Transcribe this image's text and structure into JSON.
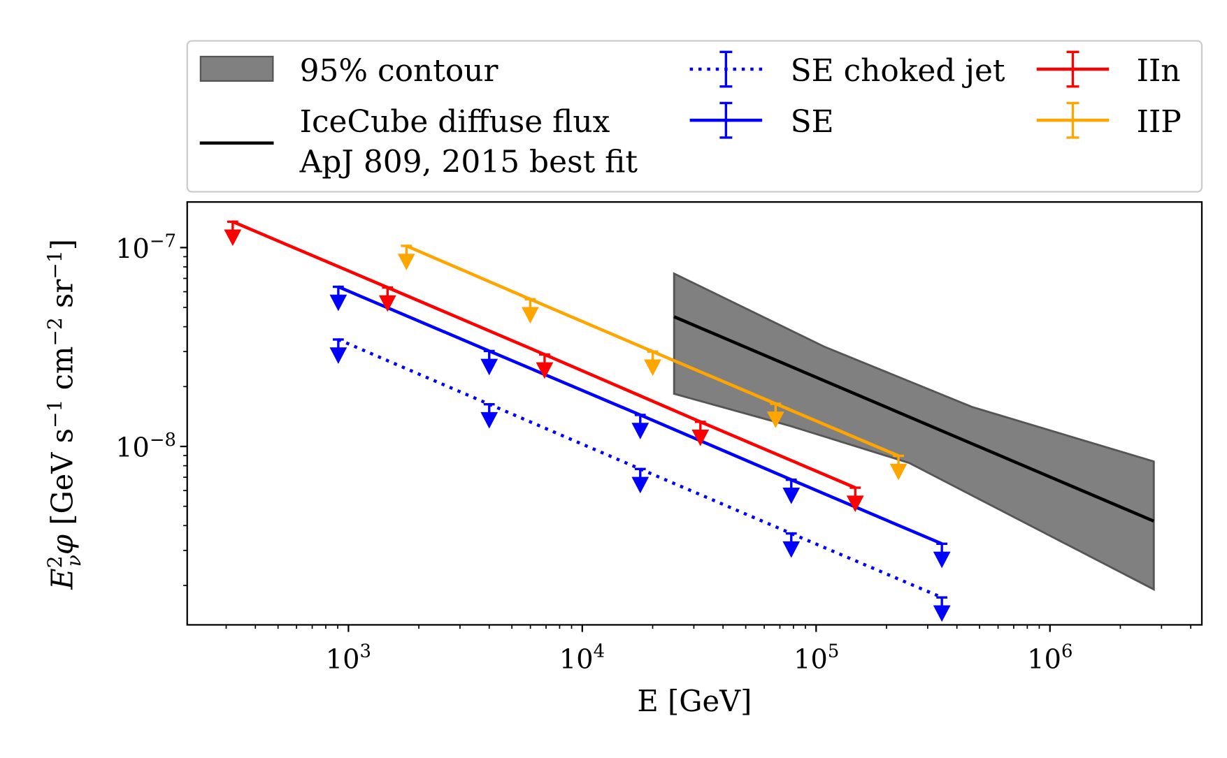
{
  "chart_data": {
    "type": "line",
    "xlabel": "E [GeV]",
    "ylabel": {
      "main": "E",
      "sup": "2",
      "sub": "ν",
      "phi": "φ",
      "units": [
        " [GeV s",
        "−1",
        " cm",
        "−2",
        " sr",
        "−1",
        "]"
      ]
    },
    "x_scale": "log",
    "y_scale": "log",
    "xlim": [
      205,
      4500000.0
    ],
    "ylim": [
      1.27e-09,
      1.7e-07
    ],
    "grid": false,
    "legend_placement": "top (outside, above axes)",
    "x_ticks": [
      {
        "base": "10",
        "exp": "3",
        "value": 1000
      },
      {
        "base": "10",
        "exp": "4",
        "value": 10000
      },
      {
        "base": "10",
        "exp": "5",
        "value": 100000
      },
      {
        "base": "10",
        "exp": "6",
        "value": 1000000
      }
    ],
    "y_ticks": [
      {
        "base": "10",
        "exp": "−7",
        "value": 1e-07
      },
      {
        "base": "10",
        "exp": "−8",
        "value": 1e-08
      }
    ],
    "contour": {
      "name": "95% contour",
      "color": "#808080",
      "upper": [
        [
          24700,
          7.4e-08
        ],
        [
          108000,
          3.18e-08
        ],
        [
          464000,
          1.58e-08
        ],
        [
          2780000,
          8.4e-09
        ]
      ],
      "lower": [
        [
          24700,
          1.84e-08
        ],
        [
          77100,
          1.27e-08
        ],
        [
          250000,
          8.26e-09
        ],
        [
          2780000,
          1.91e-09
        ]
      ]
    },
    "best_fit": {
      "name_line1": "IceCube diffuse flux",
      "name_line2": "ApJ 809, 2015 best fit",
      "color": "#000000",
      "x": [
        24700,
        2780000
      ],
      "y": [
        4.49e-08,
        4.21e-09
      ]
    },
    "series": [
      {
        "name": "SE choked jet",
        "color": "#0000ff",
        "style": "dotted",
        "upper_limits": true,
        "x": [
          905,
          4000,
          17700,
          78300,
          345000
        ],
        "y": [
          3.45e-08,
          1.63e-08,
          7.7e-09,
          3.65e-09,
          1.74e-09
        ]
      },
      {
        "name": "SE",
        "color": "#0000ff",
        "style": "solid",
        "upper_limits": true,
        "x": [
          905,
          4000,
          17700,
          78300,
          345000
        ],
        "y": [
          6.35e-08,
          3.02e-08,
          1.44e-08,
          6.8e-09,
          3.24e-09
        ]
      },
      {
        "name": "IIn",
        "color": "#ff0000",
        "style": "solid",
        "upper_limits": true,
        "x": [
          320,
          1470,
          6900,
          32000,
          147000
        ],
        "y": [
          1.35e-07,
          6.3e-08,
          2.9e-08,
          1.33e-08,
          6.2e-09
        ]
      },
      {
        "name": "IIP",
        "color": "#ffa500",
        "style": "solid",
        "upper_limits": true,
        "x": [
          1770,
          5990,
          20000,
          67100,
          225000
        ],
        "y": [
          1.02e-07,
          5.5e-08,
          3e-08,
          1.64e-08,
          8.97e-09
        ]
      }
    ]
  }
}
